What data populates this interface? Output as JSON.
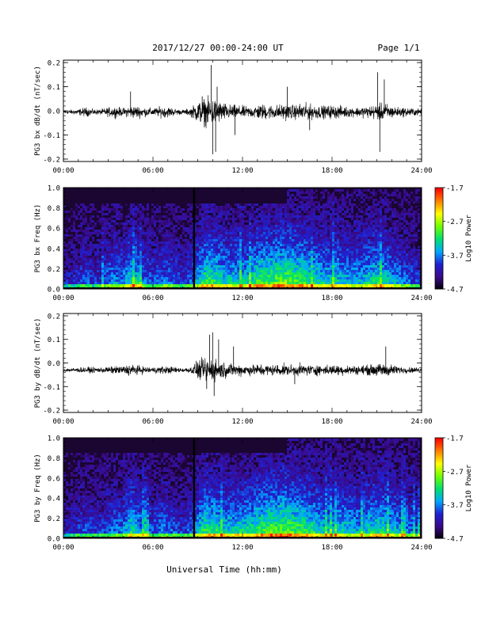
{
  "header": {
    "title": "2017/12/27  00:00-24:00 UT",
    "page": "Page 1/1"
  },
  "xaxis": {
    "ticks": [
      "00:00",
      "06:00",
      "12:00",
      "18:00",
      "24:00"
    ],
    "label": "Universal Time (hh:mm)",
    "range_hours": [
      0,
      24
    ]
  },
  "colorbar": {
    "label": "Log10 Power",
    "ticks": [
      "-1.7",
      "-2.7",
      "-3.7",
      "-4.7"
    ],
    "range": [
      -4.7,
      -1.7
    ],
    "colors": [
      "#000000",
      "#3a0a8a",
      "#2020d0",
      "#00a8ff",
      "#00e070",
      "#70ff00",
      "#ffff00",
      "#ff8000",
      "#ff0000"
    ]
  },
  "chart_data": [
    {
      "type": "line",
      "ylabel": "PG3 bx dB/dt (nT/sec)",
      "ylim": [
        -0.21,
        0.21
      ],
      "yticks": [
        "0.2",
        "0.1",
        "0.0",
        "-0.1",
        "-0.2"
      ],
      "x_hours": [
        0,
        0.5,
        1,
        1.5,
        2,
        2.5,
        3,
        3.5,
        4,
        4.5,
        5,
        5.5,
        6,
        6.5,
        7,
        7.5,
        8,
        8.5,
        9,
        9.5,
        10,
        10.5,
        11,
        11.5,
        12,
        12.5,
        13,
        13.5,
        14,
        14.5,
        15,
        15.5,
        16,
        16.5,
        17,
        17.5,
        18,
        18.5,
        19,
        19.5,
        20,
        20.5,
        21,
        21.5,
        22,
        22.5,
        23,
        23.5,
        24
      ],
      "amplitude": [
        0.014,
        0.015,
        0.02,
        0.03,
        0.018,
        0.018,
        0.03,
        0.035,
        0.025,
        0.04,
        0.04,
        0.03,
        0.025,
        0.035,
        0.035,
        0.022,
        0.015,
        0.025,
        0.07,
        0.09,
        0.09,
        0.07,
        0.05,
        0.045,
        0.04,
        0.035,
        0.05,
        0.05,
        0.045,
        0.05,
        0.05,
        0.045,
        0.06,
        0.05,
        0.045,
        0.04,
        0.045,
        0.04,
        0.035,
        0.03,
        0.035,
        0.04,
        0.05,
        0.06,
        0.04,
        0.03,
        0.03,
        0.025,
        0.02
      ],
      "baseline": -0.005,
      "spikes": [
        {
          "t": 9.9,
          "v": 0.19
        },
        {
          "t": 10.0,
          "v": -0.18
        },
        {
          "t": 10.3,
          "v": 0.1
        },
        {
          "t": 10.2,
          "v": -0.17
        },
        {
          "t": 9.3,
          "v": 0.06
        },
        {
          "t": 11.5,
          "v": -0.1
        },
        {
          "t": 21.05,
          "v": 0.16
        },
        {
          "t": 21.2,
          "v": -0.17
        },
        {
          "t": 21.5,
          "v": 0.13
        },
        {
          "t": 4.5,
          "v": 0.08
        },
        {
          "t": 15.0,
          "v": 0.1
        },
        {
          "t": 16.5,
          "v": -0.08
        }
      ]
    },
    {
      "type": "heatmap",
      "ylabel": "PG3 bx Freq (Hz)",
      "ylim": [
        0.0,
        1.0
      ],
      "yticks": [
        "1.0",
        "0.8",
        "0.6",
        "0.4",
        "0.2",
        "0.0"
      ],
      "colorbar_range": [
        -4.7,
        -1.7
      ],
      "x_hours": [
        0,
        0.5,
        1,
        1.5,
        2,
        2.5,
        3,
        3.5,
        4,
        4.5,
        5,
        5.5,
        6,
        6.5,
        7,
        7.5,
        8,
        8.5,
        9,
        9.5,
        10,
        10.5,
        11,
        11.5,
        12,
        12.5,
        13,
        13.5,
        14,
        14.5,
        15,
        15.5,
        16,
        16.5,
        17,
        17.5,
        18,
        18.5,
        19,
        19.5,
        20,
        20.5,
        21,
        21.5,
        22,
        22.5,
        23,
        23.5,
        24
      ],
      "activity": [
        0.2,
        0.2,
        0.25,
        0.3,
        0.25,
        0.25,
        0.35,
        0.4,
        0.35,
        0.55,
        0.5,
        0.35,
        0.3,
        0.35,
        0.35,
        0.3,
        0.25,
        0.3,
        0.45,
        0.6,
        0.6,
        0.55,
        0.5,
        0.5,
        0.5,
        0.5,
        0.6,
        0.65,
        0.65,
        0.7,
        0.7,
        0.65,
        0.65,
        0.55,
        0.55,
        0.5,
        0.5,
        0.5,
        0.45,
        0.45,
        0.45,
        0.5,
        0.55,
        0.55,
        0.45,
        0.4,
        0.35,
        0.3,
        0.25
      ],
      "gap_hour": 8.75
    },
    {
      "type": "line",
      "ylabel": "PG3 by dB/dt (nT/sec)",
      "ylim": [
        -0.21,
        0.21
      ],
      "yticks": [
        "0.2",
        "0.1",
        "0.0",
        "-0.1",
        "-0.2"
      ],
      "x_hours": [
        0,
        0.5,
        1,
        1.5,
        2,
        2.5,
        3,
        3.5,
        4,
        4.5,
        5,
        5.5,
        6,
        6.5,
        7,
        7.5,
        8,
        8.5,
        9,
        9.5,
        10,
        10.5,
        11,
        11.5,
        12,
        12.5,
        13,
        13.5,
        14,
        14.5,
        15,
        15.5,
        16,
        16.5,
        17,
        17.5,
        18,
        18.5,
        19,
        19.5,
        20,
        20.5,
        21,
        21.5,
        22,
        22.5,
        23,
        23.5,
        24
      ],
      "amplitude": [
        0.012,
        0.014,
        0.016,
        0.02,
        0.018,
        0.018,
        0.022,
        0.025,
        0.028,
        0.04,
        0.03,
        0.022,
        0.02,
        0.025,
        0.025,
        0.02,
        0.015,
        0.02,
        0.06,
        0.08,
        0.08,
        0.06,
        0.045,
        0.04,
        0.04,
        0.035,
        0.04,
        0.04,
        0.035,
        0.04,
        0.035,
        0.035,
        0.04,
        0.035,
        0.035,
        0.03,
        0.035,
        0.035,
        0.03,
        0.03,
        0.03,
        0.035,
        0.04,
        0.045,
        0.035,
        0.025,
        0.02,
        0.018,
        0.015
      ],
      "baseline": -0.03,
      "spikes": [
        {
          "t": 10.0,
          "v": 0.13
        },
        {
          "t": 9.8,
          "v": 0.12
        },
        {
          "t": 10.1,
          "v": -0.14
        },
        {
          "t": 9.6,
          "v": -0.11
        },
        {
          "t": 10.4,
          "v": 0.1
        },
        {
          "t": 11.4,
          "v": 0.07
        },
        {
          "t": 21.6,
          "v": 0.07
        },
        {
          "t": 15.5,
          "v": -0.09
        }
      ]
    },
    {
      "type": "heatmap",
      "ylabel": "PG3 by Freq (Hz)",
      "ylim": [
        0.0,
        1.0
      ],
      "yticks": [
        "1.0",
        "0.8",
        "0.6",
        "0.4",
        "0.2",
        "0.0"
      ],
      "colorbar_range": [
        -4.7,
        -1.7
      ],
      "x_hours": [
        0,
        0.5,
        1,
        1.5,
        2,
        2.5,
        3,
        3.5,
        4,
        4.5,
        5,
        5.5,
        6,
        6.5,
        7,
        7.5,
        8,
        8.5,
        9,
        9.5,
        10,
        10.5,
        11,
        11.5,
        12,
        12.5,
        13,
        13.5,
        14,
        14.5,
        15,
        15.5,
        16,
        16.5,
        17,
        17.5,
        18,
        18.5,
        19,
        19.5,
        20,
        20.5,
        21,
        21.5,
        22,
        22.5,
        23,
        23.5,
        24
      ],
      "activity": [
        0.2,
        0.2,
        0.25,
        0.3,
        0.25,
        0.25,
        0.3,
        0.35,
        0.35,
        0.55,
        0.45,
        0.35,
        0.3,
        0.35,
        0.35,
        0.3,
        0.25,
        0.3,
        0.45,
        0.6,
        0.6,
        0.55,
        0.5,
        0.5,
        0.55,
        0.55,
        0.6,
        0.65,
        0.7,
        0.7,
        0.7,
        0.65,
        0.65,
        0.6,
        0.55,
        0.5,
        0.5,
        0.5,
        0.5,
        0.45,
        0.45,
        0.5,
        0.55,
        0.55,
        0.5,
        0.45,
        0.4,
        0.35,
        0.3
      ],
      "gap_hour": 8.75
    }
  ]
}
